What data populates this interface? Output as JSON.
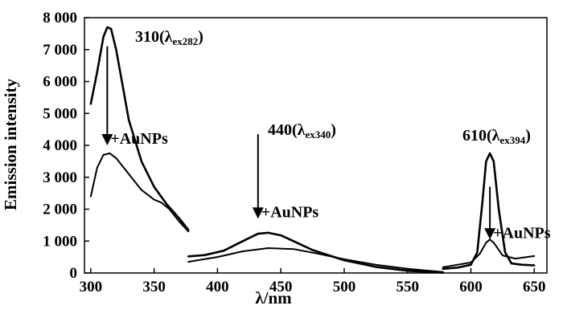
{
  "chart_data": {
    "type": "line",
    "xlabel": "λ/nm",
    "ylabel": "Emission intensity",
    "xlim": [
      295,
      660
    ],
    "ylim": [
      0,
      8000
    ],
    "x_ticks": [
      300,
      350,
      400,
      450,
      500,
      550,
      600,
      650
    ],
    "x_tick_labels": [
      "300",
      "350",
      "400",
      "450",
      "500",
      "550",
      "600",
      "650"
    ],
    "y_ticks": [
      0,
      1000,
      2000,
      3000,
      4000,
      5000,
      6000,
      7000,
      8000
    ],
    "y_tick_labels": [
      "0",
      "1 000",
      "2 000",
      "3 000",
      "4 000",
      "5 000",
      "6 000",
      "7 000",
      "8 000"
    ],
    "grid": false,
    "series": [
      {
        "segments": [
          [
            [
              300,
              5300
            ],
            [
              305,
              6300
            ],
            [
              310,
              7400
            ],
            [
              313,
              7700
            ],
            [
              316,
              7650
            ],
            [
              320,
              7000
            ],
            [
              325,
              5900
            ],
            [
              330,
              4800
            ],
            [
              340,
              3500
            ],
            [
              350,
              2700
            ],
            [
              360,
              2150
            ],
            [
              370,
              1700
            ],
            [
              377,
              1350
            ]
          ],
          [
            [
              377,
              520
            ],
            [
              390,
              560
            ],
            [
              405,
              700
            ],
            [
              420,
              1000
            ],
            [
              432,
              1230
            ],
            [
              440,
              1260
            ],
            [
              450,
              1180
            ],
            [
              460,
              1000
            ],
            [
              475,
              720
            ],
            [
              500,
              400
            ],
            [
              525,
              190
            ],
            [
              550,
              70
            ],
            [
              578,
              10
            ]
          ],
          [
            [
              578,
              130
            ],
            [
              590,
              170
            ],
            [
              600,
              260
            ],
            [
              605,
              650
            ],
            [
              609,
              2200
            ],
            [
              612,
              3500
            ],
            [
              615,
              3750
            ],
            [
              618,
              3500
            ],
            [
              622,
              2000
            ],
            [
              627,
              650
            ],
            [
              632,
              300
            ],
            [
              640,
              260
            ],
            [
              650,
              240
            ]
          ]
        ]
      },
      {
        "segments": [
          [
            [
              300,
              2400
            ],
            [
              305,
              3300
            ],
            [
              310,
              3700
            ],
            [
              315,
              3750
            ],
            [
              320,
              3600
            ],
            [
              330,
              3100
            ],
            [
              340,
              2600
            ],
            [
              350,
              2300
            ],
            [
              356,
              2200
            ],
            [
              362,
              2000
            ],
            [
              370,
              1600
            ],
            [
              377,
              1300
            ]
          ],
          [
            [
              377,
              350
            ],
            [
              400,
              500
            ],
            [
              420,
              680
            ],
            [
              440,
              780
            ],
            [
              460,
              750
            ],
            [
              480,
              600
            ],
            [
              500,
              430
            ],
            [
              525,
              260
            ],
            [
              550,
              130
            ],
            [
              578,
              30
            ]
          ],
          [
            [
              578,
              180
            ],
            [
              600,
              330
            ],
            [
              607,
              600
            ],
            [
              612,
              950
            ],
            [
              615,
              1050
            ],
            [
              618,
              950
            ],
            [
              625,
              550
            ],
            [
              635,
              450
            ],
            [
              650,
              530
            ]
          ]
        ]
      }
    ],
    "annotations": [
      {
        "main": "310(λ",
        "sub": "ex282",
        "close": ")"
      },
      {
        "main": "440(λ",
        "sub": "ex340",
        "close": ")"
      },
      {
        "main": "610(λ",
        "sub": "ex394",
        "close": ")"
      }
    ],
    "arrows": [
      {
        "x": 313,
        "y_from": 7100,
        "y_to": 4000,
        "label": "+AuNPs"
      },
      {
        "x": 432,
        "y_from": 4350,
        "y_to": 1700,
        "label": "+AuNPs"
      },
      {
        "x": 615,
        "y_from": 2700,
        "y_to": 1050,
        "label": "+AuNPs"
      }
    ]
  }
}
